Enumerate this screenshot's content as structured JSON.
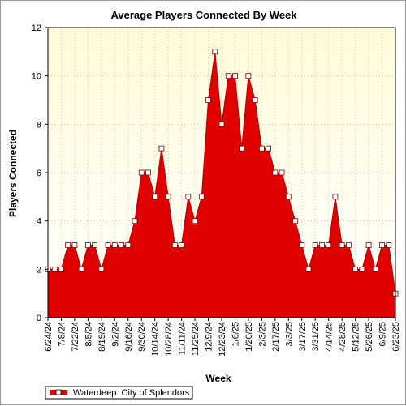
{
  "colors": {
    "series_fill": "#e00000",
    "series_line": "#b00000",
    "marker_fill": "#ffffff",
    "plot_bg_top": "#fffbd8",
    "plot_bg_bottom": "#ffffff",
    "grid": "#c8c8b0"
  },
  "chart_data": {
    "type": "area",
    "title": "Average Players Connected By Week",
    "xlabel": "Week",
    "ylabel": "Players Connected",
    "ylim": [
      0,
      12
    ],
    "yticks": [
      0,
      2,
      4,
      6,
      8,
      10,
      12
    ],
    "grid": true,
    "legend_position": "bottom-left",
    "x_tick_labels": [
      "6/24/24",
      "7/8/24",
      "7/22/24",
      "8/5/24",
      "8/19/24",
      "9/2/24",
      "9/16/24",
      "9/30/24",
      "10/14/24",
      "10/28/24",
      "11/11/24",
      "11/25/24",
      "12/9/24",
      "12/23/24",
      "1/6/25",
      "1/20/25",
      "2/3/25",
      "2/17/25",
      "3/3/25",
      "3/17/25",
      "3/31/25",
      "4/14/25",
      "4/28/25",
      "5/12/25",
      "5/26/25",
      "6/9/25",
      "6/23/25"
    ],
    "series": [
      {
        "name": "Waterdeep: City of Splendors",
        "values": [
          2,
          2,
          2,
          3,
          3,
          2,
          3,
          3,
          2,
          3,
          3,
          3,
          3,
          4,
          6,
          6,
          5,
          7,
          5,
          3,
          3,
          5,
          4,
          5,
          9,
          11,
          8,
          10,
          10,
          7,
          10,
          9,
          7,
          7,
          6,
          6,
          5,
          4,
          3,
          2,
          3,
          3,
          3,
          5,
          3,
          3,
          2,
          2,
          3,
          2,
          3,
          3,
          1
        ]
      }
    ]
  }
}
